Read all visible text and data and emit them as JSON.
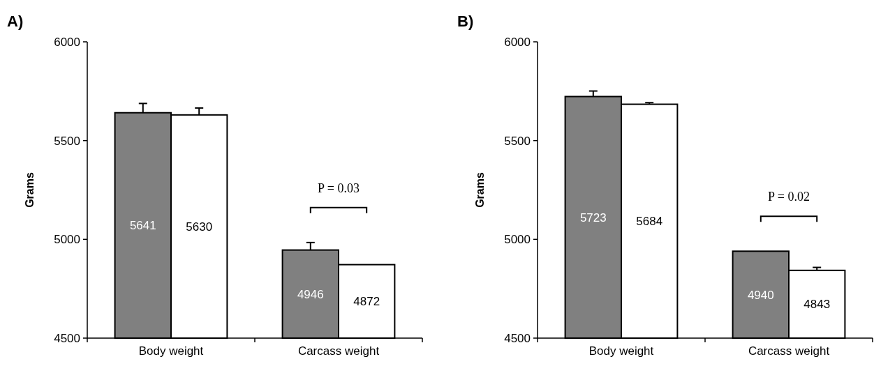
{
  "chart_data": [
    {
      "type": "bar",
      "title": "A)",
      "ylabel": "Grams",
      "categories": [
        "Body weight",
        "Carcass weight"
      ],
      "series": [
        {
          "color": "#808080",
          "values": [
            5641,
            4946
          ],
          "errors": [
            47,
            38
          ]
        },
        {
          "color": "#ffffff",
          "values": [
            5630,
            4872
          ],
          "errors": [
            35,
            null
          ]
        }
      ],
      "ylim": [
        4500,
        6000
      ],
      "yticks": [
        4500,
        5000,
        5500,
        6000
      ],
      "data_labels": true,
      "annotations": [
        "P = 0.03"
      ]
    },
    {
      "type": "bar",
      "title": "B)",
      "ylabel": "Grams",
      "categories": [
        "Body weight",
        "Carcass weight"
      ],
      "series": [
        {
          "color": "#808080",
          "values": [
            5723,
            4940
          ],
          "errors": [
            28,
            null
          ]
        },
        {
          "color": "#ffffff",
          "values": [
            5684,
            4843
          ],
          "errors": [
            8,
            15
          ]
        }
      ],
      "ylim": [
        4500,
        6000
      ],
      "yticks": [
        4500,
        5000,
        5500,
        6000
      ],
      "data_labels": true,
      "annotations": [
        "P = 0.02"
      ]
    }
  ]
}
